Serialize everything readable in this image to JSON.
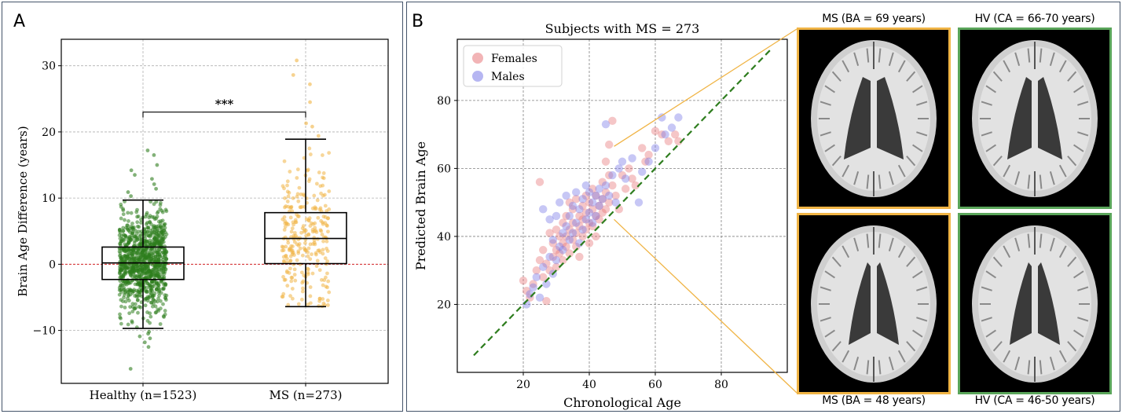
{
  "panels": {
    "a_label": "A",
    "b_label": "B"
  },
  "chart_data": [
    {
      "type": "box",
      "panel": "A",
      "categories": [
        "Healthy (n=1523)",
        "MS (n=273)"
      ],
      "ylabel": "Brain Age Difference (years)",
      "ylim": [
        -18,
        34
      ],
      "yticks": [
        -10,
        0,
        10,
        20,
        30
      ],
      "grid": true,
      "reference_line": {
        "y": 0,
        "color": "#d62728",
        "style": "dashed"
      },
      "significance": {
        "label": "***",
        "between": [
          "Healthy (n=1523)",
          "MS (n=273)"
        ],
        "y": 23
      },
      "series": [
        {
          "category": "Healthy (n=1523)",
          "n": 1523,
          "color": "#2e7d1e",
          "whisker_low": -9.7,
          "q1": -2.3,
          "median": 0.2,
          "q3": 2.6,
          "whisker_high": 9.7,
          "outliers": [
            -15.8,
            -12.5,
            -11.8,
            -11.2,
            -10.9,
            -10.5,
            -10.2,
            10.3,
            10.9,
            11.4,
            12.1,
            12.9,
            13.5,
            14.2,
            15.0,
            16.5,
            17.2
          ]
        },
        {
          "category": "MS (n=273)",
          "n": 273,
          "color": "#f0b445",
          "whisker_low": -6.4,
          "q1": 0.1,
          "median": 3.9,
          "q3": 7.8,
          "whisker_high": 18.9,
          "outliers": [
            19.4,
            20.8,
            21.3,
            24.5,
            27.2,
            28.6,
            30.8
          ]
        }
      ]
    },
    {
      "type": "scatter",
      "panel": "B",
      "title": "Subjects with MS = 273",
      "xlabel": "Chronological Age",
      "ylabel": "Predicted Brain Age",
      "xlim": [
        0,
        100
      ],
      "ylim": [
        0,
        98
      ],
      "xticks": [
        20,
        40,
        60,
        80
      ],
      "yticks": [
        20,
        40,
        60,
        80
      ],
      "grid": true,
      "legend_position": "top-left",
      "identity_line": {
        "from": [
          5,
          5
        ],
        "to": [
          95,
          95
        ],
        "color": "#2e7d1e",
        "style": "dashed"
      },
      "series": [
        {
          "name": "Females",
          "color": "#e8777a",
          "points": [
            [
              20,
              27
            ],
            [
              21,
              24
            ],
            [
              22,
              22
            ],
            [
              23,
              26
            ],
            [
              24,
              30
            ],
            [
              25,
              56
            ],
            [
              25,
              33
            ],
            [
              26,
              36
            ],
            [
              26,
              28
            ],
            [
              27,
              21
            ],
            [
              27,
              32
            ],
            [
              28,
              30
            ],
            [
              28,
              41
            ],
            [
              29,
              34
            ],
            [
              29,
              38
            ],
            [
              30,
              42
            ],
            [
              30,
              36
            ],
            [
              30,
              31
            ],
            [
              31,
              40
            ],
            [
              31,
              35
            ],
            [
              32,
              44
            ],
            [
              32,
              38
            ],
            [
              32,
              33
            ],
            [
              33,
              46
            ],
            [
              33,
              40
            ],
            [
              33,
              37
            ],
            [
              34,
              50
            ],
            [
              34,
              42
            ],
            [
              34,
              35
            ],
            [
              35,
              48
            ],
            [
              35,
              44
            ],
            [
              35,
              39
            ],
            [
              36,
              41
            ],
            [
              36,
              37
            ],
            [
              36,
              51
            ],
            [
              37,
              46
            ],
            [
              37,
              43
            ],
            [
              37,
              34
            ],
            [
              38,
              49
            ],
            [
              38,
              45
            ],
            [
              38,
              40
            ],
            [
              39,
              52
            ],
            [
              39,
              47
            ],
            [
              39,
              42
            ],
            [
              40,
              50
            ],
            [
              40,
              44
            ],
            [
              40,
              38
            ],
            [
              41,
              54
            ],
            [
              41,
              48
            ],
            [
              41,
              43
            ],
            [
              42,
              52
            ],
            [
              42,
              46
            ],
            [
              42,
              40
            ],
            [
              43,
              49
            ],
            [
              43,
              45
            ],
            [
              44,
              56
            ],
            [
              44,
              51
            ],
            [
              44,
              47
            ],
            [
              45,
              62
            ],
            [
              45,
              53
            ],
            [
              45,
              48
            ],
            [
              46,
              67
            ],
            [
              46,
              58
            ],
            [
              46,
              50
            ],
            [
              47,
              74
            ],
            [
              47,
              55
            ],
            [
              48,
              52
            ],
            [
              49,
              48
            ],
            [
              50,
              58
            ],
            [
              51,
              54
            ],
            [
              52,
              60
            ],
            [
              53,
              57
            ],
            [
              54,
              55
            ],
            [
              56,
              66
            ],
            [
              57,
              62
            ],
            [
              58,
              64
            ],
            [
              60,
              71
            ],
            [
              62,
              70
            ],
            [
              64,
              68
            ],
            [
              66,
              70
            ],
            [
              67,
              68
            ]
          ]
        },
        {
          "name": "Males",
          "color": "#7a7ae8",
          "points": [
            [
              21,
              20
            ],
            [
              22,
              23
            ],
            [
              23,
              25
            ],
            [
              24,
              28
            ],
            [
              25,
              22
            ],
            [
              26,
              31
            ],
            [
              26,
              48
            ],
            [
              27,
              26
            ],
            [
              28,
              34
            ],
            [
              28,
              45
            ],
            [
              29,
              29
            ],
            [
              29,
              39
            ],
            [
              30,
              33
            ],
            [
              30,
              46
            ],
            [
              31,
              37
            ],
            [
              31,
              50
            ],
            [
              32,
              41
            ],
            [
              32,
              36
            ],
            [
              33,
              43
            ],
            [
              33,
              52
            ],
            [
              34,
              39
            ],
            [
              34,
              46
            ],
            [
              35,
              41
            ],
            [
              35,
              49
            ],
            [
              36,
              44
            ],
            [
              36,
              53
            ],
            [
              37,
              38
            ],
            [
              37,
              48
            ],
            [
              38,
              42
            ],
            [
              38,
              51
            ],
            [
              39,
              45
            ],
            [
              39,
              55
            ],
            [
              40,
              53
            ],
            [
              40,
              47
            ],
            [
              41,
              44
            ],
            [
              41,
              50
            ],
            [
              42,
              46
            ],
            [
              42,
              52
            ],
            [
              43,
              49
            ],
            [
              43,
              54
            ],
            [
              44,
              51
            ],
            [
              45,
              73
            ],
            [
              45,
              55
            ],
            [
              46,
              52
            ],
            [
              47,
              58
            ],
            [
              48,
              50
            ],
            [
              49,
              60
            ],
            [
              50,
              62
            ],
            [
              51,
              57
            ],
            [
              53,
              63
            ],
            [
              55,
              50
            ],
            [
              56,
              59
            ],
            [
              58,
              62
            ],
            [
              60,
              66
            ],
            [
              62,
              75
            ],
            [
              63,
              70
            ],
            [
              65,
              72
            ],
            [
              67,
              75
            ]
          ]
        }
      ]
    }
  ],
  "brain_images": [
    {
      "id": "ms-top",
      "caption": "MS (BA = 69 years)",
      "border": "#f0b445"
    },
    {
      "id": "hv-top",
      "caption": "HV (CA = 66-70 years)",
      "border": "#5aa55a"
    },
    {
      "id": "ms-bottom",
      "caption": "MS (BA = 48 years)",
      "border": "#f0b445"
    },
    {
      "id": "hv-bottom",
      "caption": "HV (CA = 46-50 years)",
      "border": "#5aa55a"
    }
  ],
  "callout_color": "#f0b445"
}
